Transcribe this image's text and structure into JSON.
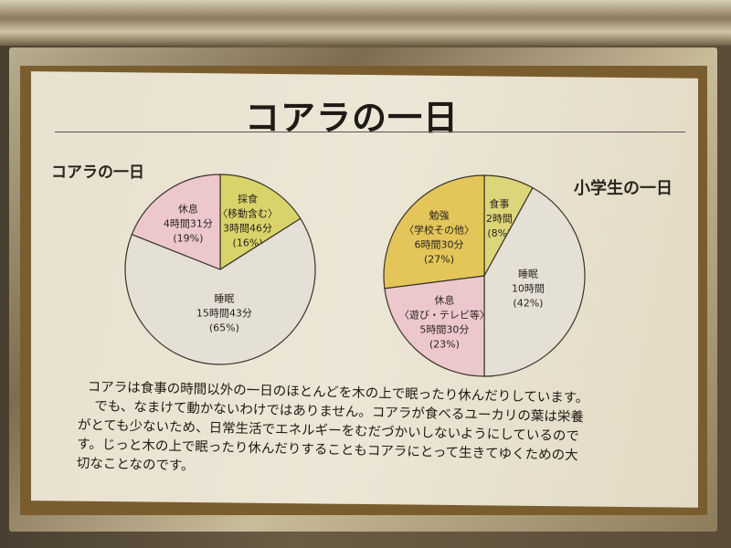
{
  "title": "コアラの一日",
  "colors": {
    "sleep": "#e4e0d6",
    "feeding": "#d9d46a",
    "rest": "#ecc8cd",
    "study": "#e3c55a"
  },
  "chart_data": [
    {
      "type": "pie",
      "title": "コアラの一日",
      "slices": [
        {
          "label": "採食",
          "sub": "〈移動含む〉",
          "time": "3時間46分",
          "pct_label": "(16%)",
          "value": 16,
          "color": "#d9d46a"
        },
        {
          "label": "睡眠",
          "sub": "",
          "time": "15時間43分",
          "pct_label": "(65%)",
          "value": 65,
          "color": "#e4e0d6"
        },
        {
          "label": "休息",
          "sub": "",
          "time": "4時間31分",
          "pct_label": "(19%)",
          "value": 19,
          "color": "#ecc8cd"
        }
      ]
    },
    {
      "type": "pie",
      "title": "小学生の一日",
      "slices": [
        {
          "label": "食事",
          "sub": "",
          "time": "2時間",
          "pct_label": "(8%)",
          "value": 8,
          "color": "#dcd57a"
        },
        {
          "label": "睡眠",
          "sub": "",
          "time": "10時間",
          "pct_label": "(42%)",
          "value": 42,
          "color": "#e4e0d6"
        },
        {
          "label": "休息",
          "sub": "〈遊び・テレビ等〉",
          "time": "5時間30分",
          "pct_label": "(23%)",
          "value": 23,
          "color": "#ecc8cd"
        },
        {
          "label": "勉強",
          "sub": "〈学校その他〉",
          "time": "6時間30分",
          "pct_label": "(27%)",
          "value": 27,
          "color": "#e3c55a"
        }
      ]
    }
  ],
  "body_lines": [
    "コアラは食事の時間以外の一日のほとんどを木の上で眠ったり休んだりしています。",
    "でも、なまけて動かないわけではありません。コアラが食べるユーカリの葉は栄養",
    "がとても少ないため、日常生活でエネルギーをむだづかいしないようにしているので",
    "す。じっと木の上で眠ったり休んだりすることもコアラにとって生きてゆくための大",
    "切なことなのです。"
  ]
}
